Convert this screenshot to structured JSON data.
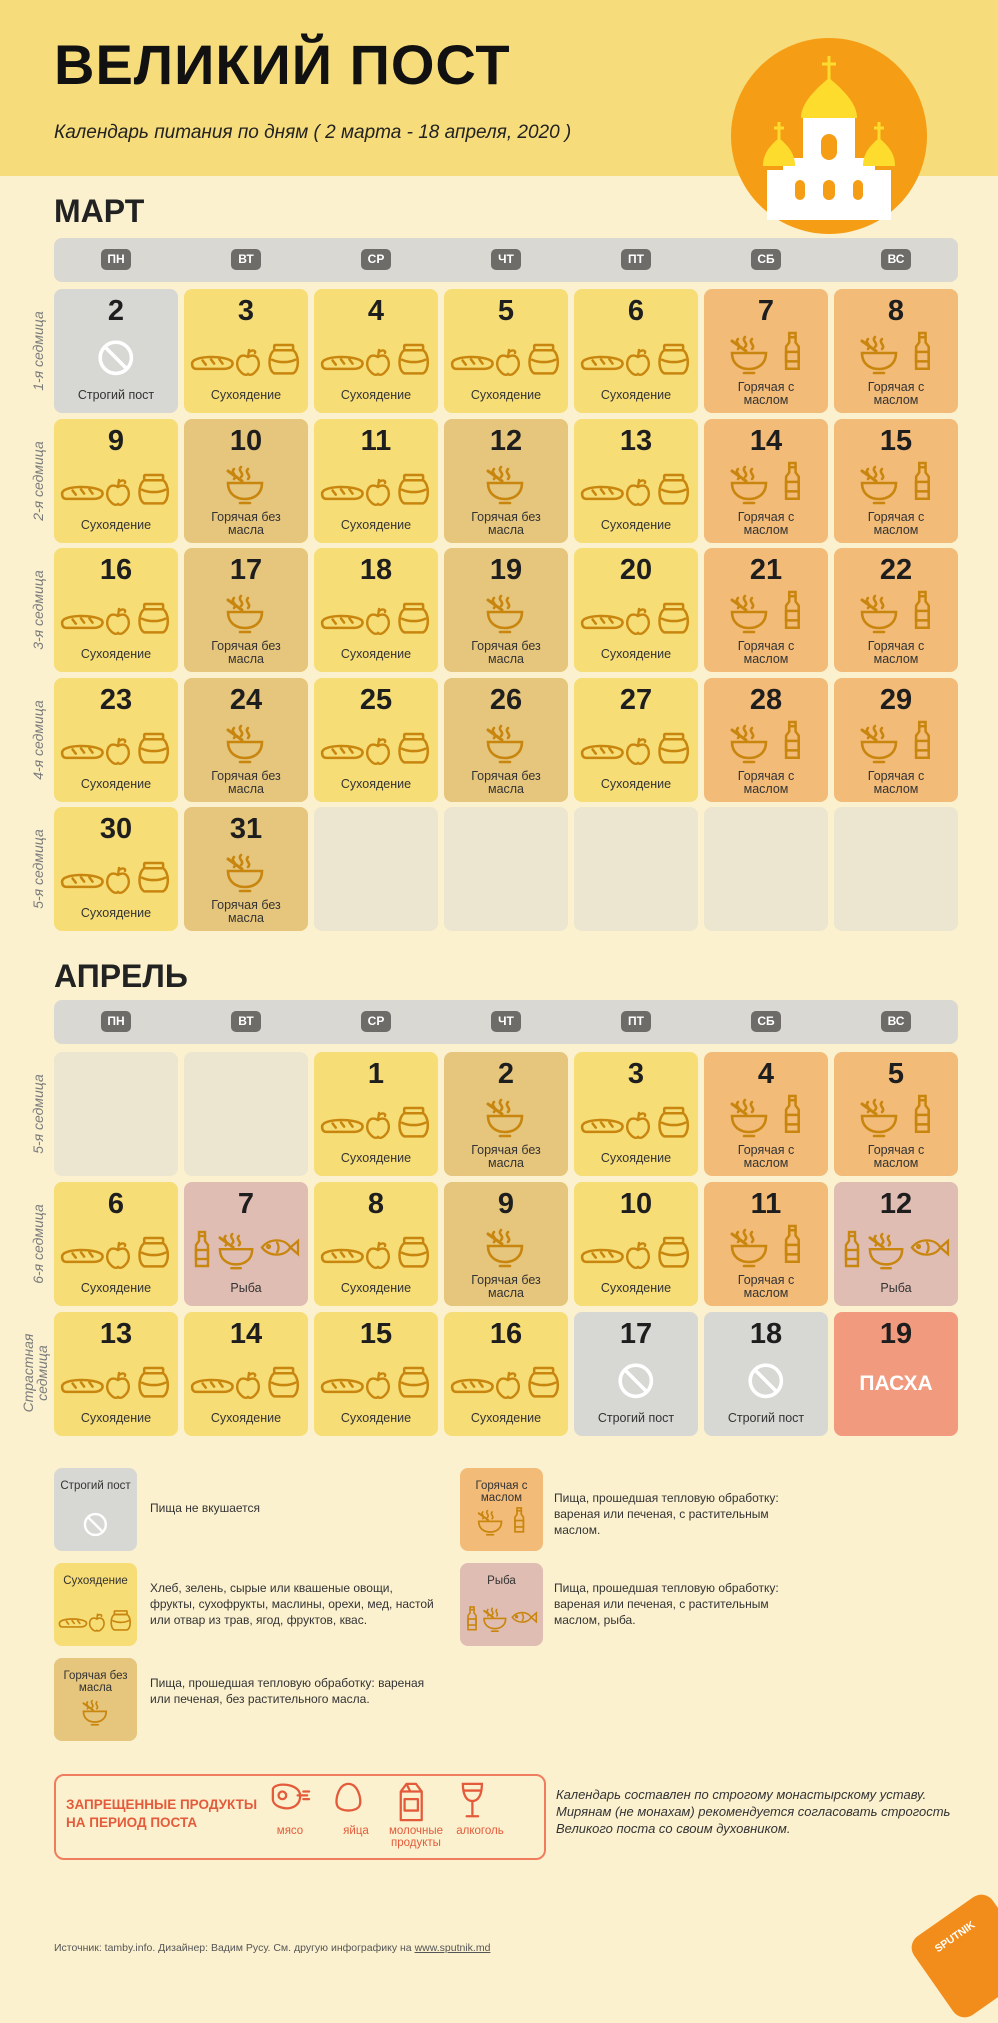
{
  "header": {
    "title": "ВЕЛИКИЙ ПОСТ",
    "subtitle": "Календарь питания по дням  ( 2 марта - 18 апреля, 2020 )"
  },
  "weekdays": [
    "ПН",
    "ВТ",
    "СР",
    "ЧТ",
    "ПТ",
    "СБ",
    "ВС"
  ],
  "colors": {
    "dry": "#f6dd76",
    "hot": "#e6c57c",
    "oil": "#f3bb78",
    "fish": "#e0bdb3",
    "strict": "#d7d7d4",
    "easter": "#f19a7e",
    "icon": "#c8860f"
  },
  "march": {
    "title": "МАРТ",
    "weeks": [
      {
        "label": "1-я седмица",
        "days": [
          {
            "num": "2",
            "type": "strict",
            "caption": "Строгий пост"
          },
          {
            "num": "3",
            "type": "dry",
            "caption": "Сухоядение"
          },
          {
            "num": "4",
            "type": "dry",
            "caption": "Сухоядение"
          },
          {
            "num": "5",
            "type": "dry",
            "caption": "Сухоядение"
          },
          {
            "num": "6",
            "type": "dry",
            "caption": "Сухоядение"
          },
          {
            "num": "7",
            "type": "oil",
            "caption": "Горячая с маслом"
          },
          {
            "num": "8",
            "type": "oil",
            "caption": "Горячая с маслом"
          }
        ]
      },
      {
        "label": "2-я седмица",
        "days": [
          {
            "num": "9",
            "type": "dry",
            "caption": "Сухоядение"
          },
          {
            "num": "10",
            "type": "hot",
            "caption": "Горячая без масла"
          },
          {
            "num": "11",
            "type": "dry",
            "caption": "Сухоядение"
          },
          {
            "num": "12",
            "type": "hot",
            "caption": "Горячая без масла"
          },
          {
            "num": "13",
            "type": "dry",
            "caption": "Сухоядение"
          },
          {
            "num": "14",
            "type": "oil",
            "caption": "Горячая с маслом"
          },
          {
            "num": "15",
            "type": "oil",
            "caption": "Горячая с маслом"
          }
        ]
      },
      {
        "label": "3-я седмица",
        "days": [
          {
            "num": "16",
            "type": "dry",
            "caption": "Сухоядение"
          },
          {
            "num": "17",
            "type": "hot",
            "caption": "Горячая без масла"
          },
          {
            "num": "18",
            "type": "dry",
            "caption": "Сухоядение"
          },
          {
            "num": "19",
            "type": "hot",
            "caption": "Горячая без масла"
          },
          {
            "num": "20",
            "type": "dry",
            "caption": "Сухоядение"
          },
          {
            "num": "21",
            "type": "oil",
            "caption": "Горячая с маслом"
          },
          {
            "num": "22",
            "type": "oil",
            "caption": "Горячая с маслом"
          }
        ]
      },
      {
        "label": "4-я седмица",
        "days": [
          {
            "num": "23",
            "type": "dry",
            "caption": "Сухоядение"
          },
          {
            "num": "24",
            "type": "hot",
            "caption": "Горячая без масла"
          },
          {
            "num": "25",
            "type": "dry",
            "caption": "Сухоядение"
          },
          {
            "num": "26",
            "type": "hot",
            "caption": "Горячая без масла"
          },
          {
            "num": "27",
            "type": "dry",
            "caption": "Сухоядение"
          },
          {
            "num": "28",
            "type": "oil",
            "caption": "Горячая с маслом"
          },
          {
            "num": "29",
            "type": "oil",
            "caption": "Горячая с маслом"
          }
        ]
      },
      {
        "label": "5-я седмица",
        "days": [
          {
            "num": "30",
            "type": "dry",
            "caption": "Сухоядение"
          },
          {
            "num": "31",
            "type": "hot",
            "caption": "Горячая без масла"
          },
          {
            "type": "empty"
          },
          {
            "type": "empty"
          },
          {
            "type": "empty"
          },
          {
            "type": "empty"
          },
          {
            "type": "empty"
          }
        ]
      }
    ]
  },
  "april": {
    "title": "АПРЕЛЬ",
    "weeks": [
      {
        "label": "5-я седмица",
        "days": [
          {
            "type": "empty"
          },
          {
            "type": "empty"
          },
          {
            "num": "1",
            "type": "dry",
            "caption": "Сухоядение"
          },
          {
            "num": "2",
            "type": "hot",
            "caption": "Горячая без масла"
          },
          {
            "num": "3",
            "type": "dry",
            "caption": "Сухоядение"
          },
          {
            "num": "4",
            "type": "oil",
            "caption": "Горячая с маслом"
          },
          {
            "num": "5",
            "type": "oil",
            "caption": "Горячая с маслом"
          }
        ]
      },
      {
        "label": "6-я седмица",
        "days": [
          {
            "num": "6",
            "type": "dry",
            "caption": "Сухоядение"
          },
          {
            "num": "7",
            "type": "fish",
            "caption": "Рыба"
          },
          {
            "num": "8",
            "type": "dry",
            "caption": "Сухоядение"
          },
          {
            "num": "9",
            "type": "hot",
            "caption": "Горячая без масла"
          },
          {
            "num": "10",
            "type": "dry",
            "caption": "Сухоядение"
          },
          {
            "num": "11",
            "type": "oil",
            "caption": "Горячая с маслом"
          },
          {
            "num": "12",
            "type": "fish",
            "caption": "Рыба"
          }
        ]
      },
      {
        "label": "Страстная седмица",
        "days": [
          {
            "num": "13",
            "type": "dry",
            "caption": "Сухоядение"
          },
          {
            "num": "14",
            "type": "dry",
            "caption": "Сухоядение"
          },
          {
            "num": "15",
            "type": "dry",
            "caption": "Сухоядение"
          },
          {
            "num": "16",
            "type": "dry",
            "caption": "Сухоядение"
          },
          {
            "num": "17",
            "type": "strict",
            "caption": "Строгий пост"
          },
          {
            "num": "18",
            "type": "strict",
            "caption": "Строгий пост"
          },
          {
            "num": "19",
            "type": "easter",
            "caption": "ПАСХА"
          }
        ]
      }
    ]
  },
  "legend": [
    {
      "type": "strict",
      "title": "Строгий пост",
      "desc": "Пища не вкушается"
    },
    {
      "type": "oil",
      "title": "Горячая с маслом",
      "desc": "Пища, прошедшая тепловую обработку: вареная или печеная, с растительным маслом."
    },
    {
      "type": "dry",
      "title": "Сухоядение",
      "desc": "Хлеб, зелень, сырые или квашеные овощи, фрукты, сухофрукты, маслины, орехи, мед, настой или отвар из трав, ягод, фруктов, квас."
    },
    {
      "type": "fish",
      "title": "Рыба",
      "desc": "Пища, прошедшая тепловую обработку: вареная или печеная, с растительным маслом, рыба."
    },
    {
      "type": "hot",
      "title": "Горячая без масла",
      "desc": "Пища, прошедшая тепловую обработку: вареная или печеная, без растительного масла."
    }
  ],
  "forbidden": {
    "title_line1": "ЗАПРЕЩЕННЫЕ ПРОДУКТЫ",
    "title_line2": "НА ПЕРИОД ПОСТА",
    "items": [
      {
        "icon": "meat-icon",
        "label": "мясо"
      },
      {
        "icon": "egg-icon",
        "label": "яйца"
      },
      {
        "icon": "milk-icon",
        "label": "молочные продукты"
      },
      {
        "icon": "wine-icon",
        "label": "алкоголь"
      }
    ]
  },
  "note": "Календарь составлен по строгому монастырскому уставу. Мирянам (не монахам) рекомендуется согласовать строгость Великого поста со своим духовником.",
  "footer": {
    "source_prefix": "Источник: tamby.info. Дизайнер: Вадим Русу. См. другую инфографику на ",
    "source_link": "www.sputnik.md",
    "logo": "SPUTNIK"
  }
}
